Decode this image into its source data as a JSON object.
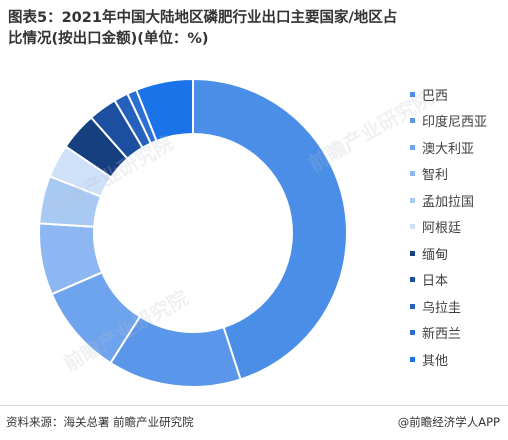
{
  "title": "图表5：2021年中国大陆地区磷肥行业出口主要国家/地区占比情况(按出口金额)(单位：%)",
  "chart_data": {
    "type": "pie",
    "donut": true,
    "title": "图表5：2021年中国大陆地区磷肥行业出口主要国家/地区占比情况(按出口金额)(单位：%)",
    "legend_position": "right",
    "categories": [
      "巴西",
      "印度尼西亚",
      "澳大利亚",
      "智利",
      "孟加拉国",
      "阿根廷",
      "缅甸",
      "日本",
      "乌拉圭",
      "新西兰",
      "其他"
    ],
    "values": [
      45.0,
      14.0,
      9.5,
      7.5,
      5.0,
      3.5,
      4.0,
      3.0,
      1.5,
      1.0,
      6.0
    ],
    "colors": [
      "#4a8ee8",
      "#5a97ea",
      "#6ea3ee",
      "#8db7f2",
      "#a9c9f5",
      "#cfe0f9",
      "#163f80",
      "#1c4fa0",
      "#2560bc",
      "#2b6fd2",
      "#1a73e8"
    ]
  },
  "watermarks": [
    "前瞻产业研究院",
    "前瞻产业研究院",
    "前瞻产业研究院"
  ],
  "footer": {
    "source": "资料来源：海关总署 前瞻产业研究院",
    "credit": "@前瞻经济学人APP"
  }
}
